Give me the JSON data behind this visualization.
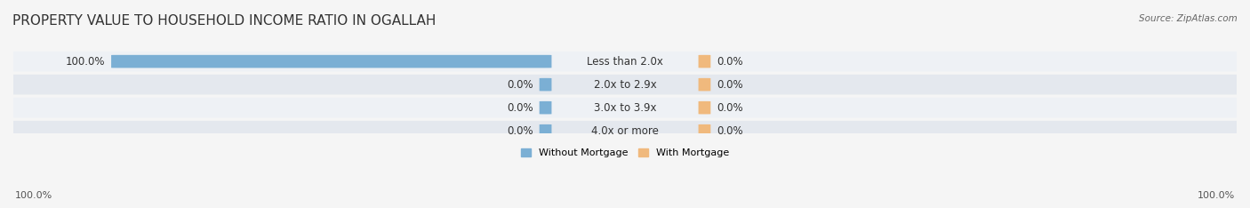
{
  "title": "PROPERTY VALUE TO HOUSEHOLD INCOME RATIO IN OGALLAH",
  "source": "Source: ZipAtlas.com",
  "categories": [
    "Less than 2.0x",
    "2.0x to 2.9x",
    "3.0x to 3.9x",
    "4.0x or more"
  ],
  "without_mortgage": [
    100.0,
    0.0,
    0.0,
    0.0
  ],
  "with_mortgage": [
    0.0,
    0.0,
    0.0,
    0.0
  ],
  "color_without": "#7bafd4",
  "color_with": "#f0b97d",
  "bar_bg_color": "#e8e8e8",
  "row_bg_colors": [
    "#f0f4f8",
    "#e8edf2"
  ],
  "title_fontsize": 11,
  "label_fontsize": 8.5,
  "axis_label_fontsize": 8,
  "legend_fontsize": 8,
  "left_label": "100.0%",
  "right_label": "100.0%",
  "background_color": "#f5f5f5"
}
